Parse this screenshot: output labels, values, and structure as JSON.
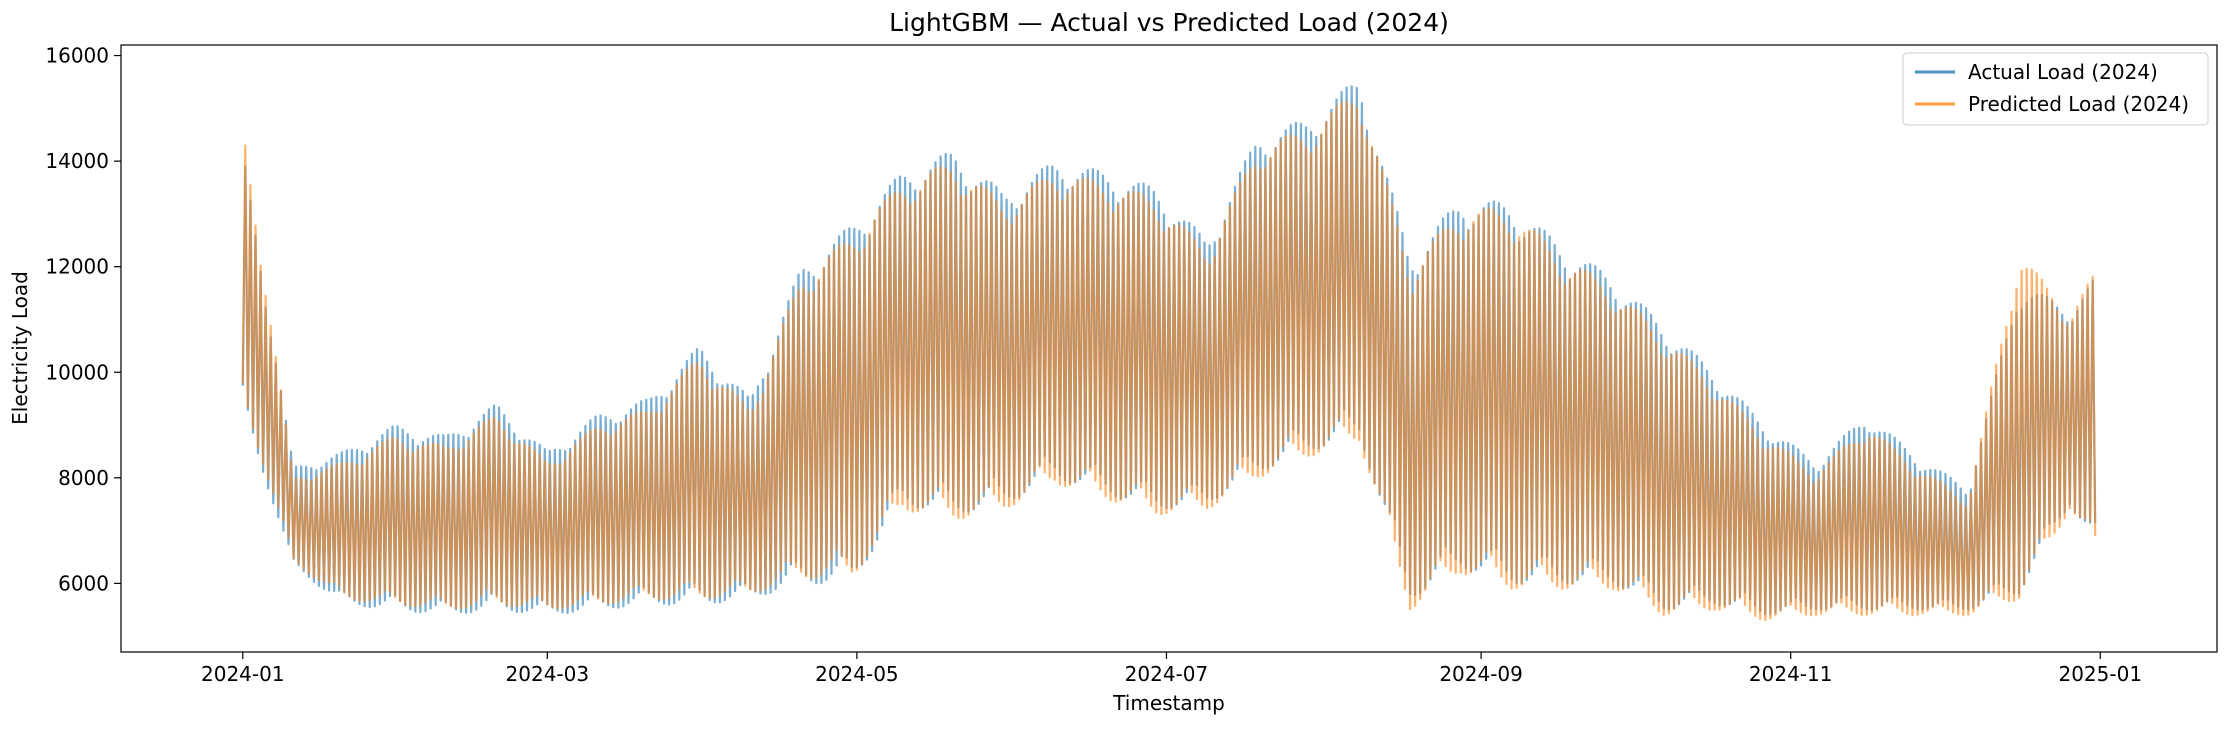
{
  "chart_data": {
    "type": "line",
    "title": "LightGBM — Actual vs Predicted Load (2024)",
    "xlabel": "Timestamp",
    "ylabel": "Electricity Load",
    "xlim": [
      "2023-12-08",
      "2025-01-24"
    ],
    "ylim": [
      4700,
      16200
    ],
    "x_ticks": [
      "2024-01-01",
      "2024-03-01",
      "2024-05-01",
      "2024-07-01",
      "2024-09-01",
      "2024-11-01",
      "2025-01-01"
    ],
    "x_tick_labels": [
      "2024-01",
      "2024-03",
      "2024-05",
      "2024-07",
      "2024-09",
      "2024-11",
      "2025-01"
    ],
    "y_ticks": [
      6000,
      8000,
      10000,
      12000,
      14000,
      16000
    ],
    "y_tick_labels": [
      "6000",
      "8000",
      "10000",
      "12000",
      "14000",
      "16000"
    ],
    "grid": false,
    "legend_position": "top-right",
    "sampling": "daily minimum and daily maximum, estimated from the chart",
    "x": [
      "2024-01-01",
      "2024-01-11",
      "2024-01-21",
      "2024-01-31",
      "2024-02-10",
      "2024-02-20",
      "2024-03-01",
      "2024-03-11",
      "2024-03-21",
      "2024-03-31",
      "2024-04-10",
      "2024-04-20",
      "2024-04-30",
      "2024-05-10",
      "2024-05-20",
      "2024-05-30",
      "2024-06-09",
      "2024-06-19",
      "2024-06-29",
      "2024-07-09",
      "2024-07-19",
      "2024-07-29",
      "2024-08-08",
      "2024-08-18",
      "2024-08-28",
      "2024-09-07",
      "2024-09-17",
      "2024-09-27",
      "2024-10-07",
      "2024-10-17",
      "2024-10-27",
      "2024-11-06",
      "2024-11-16",
      "2024-11-26",
      "2024-12-06",
      "2024-12-16",
      "2024-12-26",
      "2024-12-31"
    ],
    "series": [
      {
        "name": "Actual Load (2024)",
        "color": "#1f77b4",
        "opacity": 0.6,
        "daily_min": [
          9300,
          6300,
          5600,
          5500,
          5400,
          5500,
          5400,
          5500,
          5600,
          5600,
          5700,
          6000,
          6000,
          7500,
          7300,
          7500,
          8000,
          7700,
          7400,
          7500,
          8100,
          8500,
          8800,
          5700,
          6300,
          6000,
          6000,
          6000,
          5500,
          5600,
          5400,
          5500,
          5500,
          5500,
          5500,
          5800,
          7500,
          6700
        ],
        "daily_max": [
          14200,
          8200,
          8500,
          9000,
          8800,
          9400,
          8500,
          9200,
          9500,
          10500,
          9500,
          12000,
          12800,
          13800,
          14200,
          13400,
          14000,
          13800,
          13500,
          12500,
          14500,
          14800,
          15600,
          12200,
          13300,
          13200,
          12400,
          11800,
          10900,
          10000,
          9000,
          8300,
          9200,
          8400,
          7800,
          11700,
          11200,
          11800
        ]
      },
      {
        "name": "Predicted Load (2024)",
        "color": "#ff7f0e",
        "opacity": 0.6,
        "daily_min": [
          9500,
          6400,
          5700,
          5600,
          5500,
          5600,
          5500,
          5600,
          5700,
          5700,
          5800,
          6100,
          6100,
          7400,
          7200,
          7400,
          7900,
          7600,
          7300,
          7400,
          8000,
          8400,
          8700,
          5500,
          6200,
          5900,
          5900,
          5900,
          5400,
          5500,
          5300,
          5400,
          5400,
          5400,
          5400,
          5700,
          7400,
          6600
        ],
        "daily_max": [
          14700,
          8000,
          8300,
          8800,
          8600,
          9200,
          8300,
          9000,
          9300,
          10300,
          9300,
          11800,
          12600,
          13600,
          14000,
          13200,
          13800,
          13600,
          13300,
          12300,
          14300,
          14600,
          15400,
          12000,
          13100,
          13100,
          12200,
          11600,
          10700,
          9800,
          8800,
          8100,
          9000,
          8200,
          7600,
          12300,
          11100,
          11900
        ]
      }
    ]
  }
}
